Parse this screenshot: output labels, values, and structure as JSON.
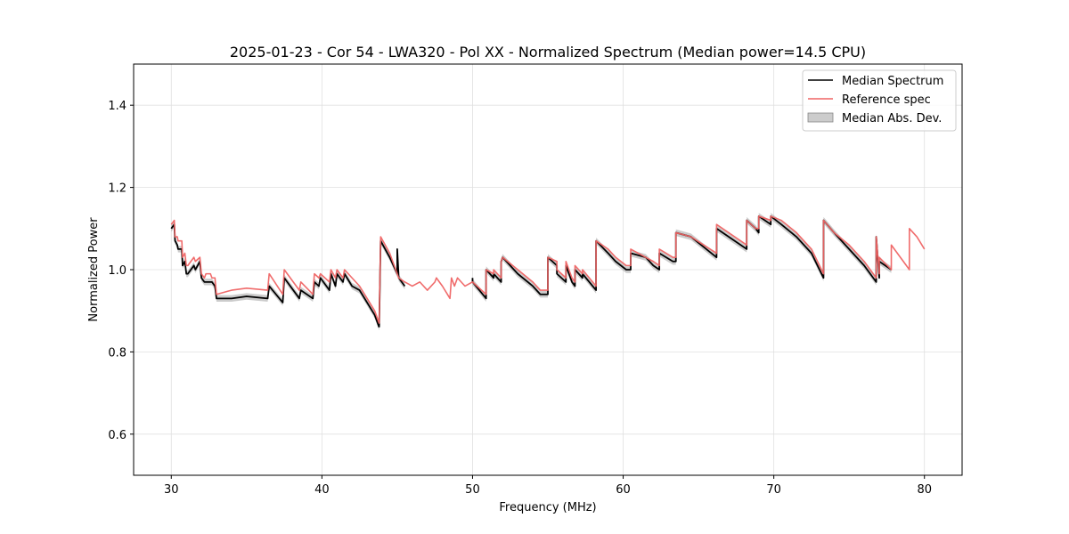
{
  "chart_data": {
    "type": "line",
    "title": "2025-01-23 - Cor 54 - LWA320 - Pol XX - Normalized Spectrum (Median power=14.5 CPU)",
    "xlabel": "Frequency (MHz)",
    "ylabel": "Normalized Power",
    "xlim": [
      27.5,
      82.5
    ],
    "ylim": [
      0.5,
      1.5
    ],
    "x_ticks": [
      30,
      40,
      50,
      60,
      70,
      80
    ],
    "y_ticks": [
      0.6,
      0.8,
      1.0,
      1.2,
      1.4
    ],
    "x_tick_labels": [
      "30",
      "40",
      "50",
      "60",
      "70",
      "80"
    ],
    "y_tick_labels": [
      "0.6",
      "0.8",
      "1.0",
      "1.2",
      "1.4"
    ],
    "grid": true,
    "legend_position": "top-right",
    "series": [
      {
        "name": "Median Spectrum",
        "color": "#000000",
        "segments": [
          {
            "x": [
              30.0,
              30.2,
              30.25,
              30.4,
              30.45,
              30.7,
              30.75,
              30.9,
              31.0,
              31.1,
              31.5,
              31.6,
              31.9,
              32.0,
              32.2,
              32.3,
              32.6,
              32.7,
              32.9,
              33.0,
              34.0,
              35.0,
              36.4,
              36.5,
              37.4,
              37.5,
              38.5,
              38.6,
              39.4,
              39.5,
              39.8,
              39.9,
              40.5,
              40.6,
              40.9,
              41.0,
              41.4,
              41.5,
              42.0,
              42.5,
              43.0,
              43.5,
              43.8
            ],
            "y": [
              1.1,
              1.11,
              1.07,
              1.06,
              1.05,
              1.05,
              1.01,
              1.02,
              0.99,
              0.99,
              1.01,
              1.0,
              1.02,
              0.98,
              0.97,
              0.97,
              0.97,
              0.97,
              0.96,
              0.93,
              0.93,
              0.935,
              0.93,
              0.96,
              0.92,
              0.98,
              0.93,
              0.95,
              0.93,
              0.97,
              0.96,
              0.98,
              0.95,
              0.99,
              0.96,
              0.99,
              0.97,
              0.99,
              0.96,
              0.95,
              0.92,
              0.89,
              0.86
            ]
          },
          {
            "x": [
              43.8,
              43.9,
              44.5,
              45.0,
              45.0,
              45.1,
              45.5
            ],
            "y": [
              0.86,
              1.07,
              1.03,
              0.99,
              1.05,
              0.98,
              0.96
            ]
          },
          {
            "x": [
              50.0,
              50.0,
              50.9,
              50.9,
              51.4,
              51.4,
              51.9,
              51.9,
              52.0,
              53.0,
              54.0,
              54.5,
              54.5,
              55.0,
              55.0,
              55.6,
              55.6,
              56.2,
              56.2,
              56.5,
              56.6,
              56.8,
              56.8,
              57.3,
              57.3,
              58.2,
              58.2,
              59.0,
              59.5,
              60.2,
              60.5,
              60.5,
              61.5,
              62.0,
              62.4,
              62.4,
              63.3,
              63.5,
              63.5,
              64.5,
              66.2,
              66.2,
              67.0,
              68.2,
              68.2,
              68.8,
              69.0,
              69.0,
              69.8,
              69.8,
              70.5,
              71.5,
              72.5,
              73.3,
              73.3,
              74.0,
              75.0,
              76.0,
              76.8,
              76.8,
              77.0,
              77.0,
              77.8
            ],
            "y": [
              0.98,
              0.97,
              0.93,
              1.0,
              0.98,
              0.99,
              0.97,
              1.02,
              1.03,
              0.99,
              0.96,
              0.94,
              0.94,
              0.94,
              1.03,
              1.01,
              0.99,
              0.97,
              1.01,
              0.98,
              0.97,
              0.96,
              1.0,
              0.98,
              0.99,
              0.95,
              1.07,
              1.04,
              1.02,
              1.0,
              1.0,
              1.04,
              1.03,
              1.01,
              1.0,
              1.04,
              1.02,
              1.02,
              1.09,
              1.08,
              1.03,
              1.1,
              1.08,
              1.05,
              1.12,
              1.1,
              1.09,
              1.13,
              1.11,
              1.13,
              1.11,
              1.08,
              1.04,
              0.98,
              1.12,
              1.09,
              1.05,
              1.01,
              0.97,
              1.08,
              0.98,
              1.02,
              1.0
            ]
          }
        ]
      },
      {
        "name": "Reference spec",
        "color": "#ef6464",
        "segments": [
          {
            "x": [
              30.0,
              30.2,
              30.25,
              30.4,
              30.45,
              30.7,
              30.75,
              30.9,
              31.0,
              31.1,
              31.5,
              31.6,
              31.9,
              32.0,
              32.2,
              32.3,
              32.6,
              32.7,
              32.9,
              33.0,
              34.0,
              35.0,
              36.4,
              36.5,
              37.4,
              37.5,
              38.5,
              38.6,
              39.4,
              39.5,
              39.8,
              39.9,
              40.5,
              40.6,
              40.9,
              41.0,
              41.4,
              41.5,
              42.0,
              42.5,
              43.0,
              43.5,
              43.8,
              43.9,
              44.5,
              45.0,
              45.1,
              45.5,
              46.0,
              46.5,
              47.0,
              47.5,
              47.6,
              48.0,
              48.5,
              48.6,
              48.8,
              49.0,
              49.5,
              50.0,
              50.9,
              50.9,
              51.4,
              51.4,
              51.9,
              51.9,
              52.0,
              53.0,
              54.0,
              54.5,
              55.0,
              55.0,
              55.6,
              55.6,
              56.2,
              56.2,
              56.5,
              56.6,
              56.8,
              56.8,
              57.3,
              57.3,
              58.2,
              58.2,
              59.0,
              59.5,
              60.2,
              60.5,
              60.5,
              61.5,
              62.0,
              62.4,
              62.4,
              63.3,
              63.5,
              63.5,
              64.5,
              66.2,
              66.2,
              67.0,
              68.2,
              68.2,
              68.8,
              69.0,
              69.0,
              69.8,
              69.8,
              70.5,
              71.5,
              72.5,
              73.3,
              73.3,
              74.0,
              75.0,
              76.0,
              76.8,
              76.8,
              77.0,
              77.0,
              77.8,
              77.8,
              79.0,
              79.0,
              79.5,
              80.0
            ],
            "y": [
              1.11,
              1.12,
              1.08,
              1.08,
              1.07,
              1.07,
              1.03,
              1.04,
              1.01,
              1.01,
              1.03,
              1.02,
              1.03,
              0.99,
              0.98,
              0.99,
              0.99,
              0.98,
              0.98,
              0.94,
              0.95,
              0.955,
              0.95,
              0.99,
              0.94,
              1.0,
              0.95,
              0.97,
              0.94,
              0.99,
              0.98,
              0.99,
              0.97,
              1.0,
              0.98,
              1.0,
              0.98,
              1.0,
              0.98,
              0.96,
              0.93,
              0.9,
              0.87,
              1.08,
              1.04,
              0.99,
              0.98,
              0.97,
              0.96,
              0.97,
              0.95,
              0.97,
              0.98,
              0.96,
              0.93,
              0.98,
              0.96,
              0.98,
              0.96,
              0.97,
              0.94,
              1.0,
              0.99,
              1.0,
              0.98,
              1.02,
              1.03,
              1.0,
              0.97,
              0.95,
              0.95,
              1.03,
              1.02,
              1.0,
              0.98,
              1.02,
              0.99,
              0.98,
              0.97,
              1.01,
              0.99,
              1.0,
              0.96,
              1.07,
              1.05,
              1.03,
              1.01,
              1.01,
              1.05,
              1.03,
              1.02,
              1.01,
              1.05,
              1.03,
              1.03,
              1.09,
              1.08,
              1.04,
              1.11,
              1.09,
              1.06,
              1.12,
              1.1,
              1.1,
              1.13,
              1.12,
              1.13,
              1.12,
              1.09,
              1.05,
              0.99,
              1.12,
              1.09,
              1.06,
              1.02,
              0.98,
              1.08,
              0.99,
              1.03,
              1.0,
              1.06,
              1.0,
              1.1,
              1.08,
              1.05
            ]
          }
        ]
      }
    ],
    "band": {
      "name": "Median Abs. Dev.",
      "color": "#999999",
      "half_width": 0.008
    }
  }
}
